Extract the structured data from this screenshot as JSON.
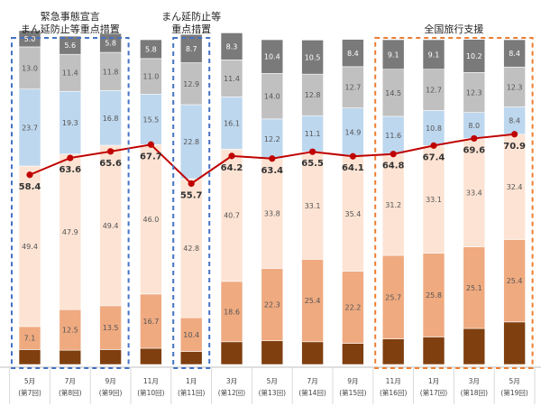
{
  "chart_data": {
    "type": "bar",
    "stacked": true,
    "ylim": [
      0,
      100
    ],
    "categories": [
      {
        "month": "5月",
        "round": "(第7回)"
      },
      {
        "month": "7月",
        "round": "(第8回)"
      },
      {
        "month": "9月",
        "round": "(第9回)"
      },
      {
        "month": "11月",
        "round": "(第10回)"
      },
      {
        "month": "1月",
        "round": "(第11回)"
      },
      {
        "month": "3月",
        "round": "(第12回)"
      },
      {
        "month": "5月",
        "round": "(第13回)"
      },
      {
        "month": "7月",
        "round": "(第14回)"
      },
      {
        "month": "9月",
        "round": "(第15回)"
      },
      {
        "month": "11月",
        "round": "(第16回)"
      },
      {
        "month": "1月",
        "round": "(第17回)"
      },
      {
        "month": "3月",
        "round": "(第18回)"
      },
      {
        "month": "5月",
        "round": "(第19回)"
      }
    ],
    "series": [
      {
        "color": "#7f3f0f",
        "values": [
          4.6,
          4.4,
          4.6,
          5.0,
          4.0,
          7.0,
          7.3,
          7.0,
          6.5,
          7.9,
          8.5,
          11.1,
          13.1
        ]
      },
      {
        "color": "#efaa80",
        "values": [
          7.1,
          12.5,
          13.5,
          16.7,
          10.4,
          18.6,
          22.3,
          25.4,
          22.2,
          25.7,
          25.8,
          25.1,
          25.4
        ]
      },
      {
        "color": "#fce3d3",
        "values": [
          49.4,
          47.9,
          49.4,
          46.0,
          42.8,
          40.7,
          33.8,
          33.1,
          35.4,
          31.2,
          33.1,
          33.4,
          32.4
        ]
      },
      {
        "color": "#bdd7ee",
        "values": [
          23.7,
          19.3,
          16.8,
          15.5,
          22.8,
          16.1,
          12.2,
          11.1,
          14.9,
          11.6,
          10.8,
          8.0,
          8.4
        ]
      },
      {
        "color": "#c0c0c0",
        "values": [
          13.0,
          11.4,
          11.8,
          11.0,
          12.9,
          11.4,
          14.0,
          12.8,
          12.7,
          14.5,
          12.7,
          12.3,
          12.3
        ]
      },
      {
        "color": "#7a7a7a",
        "values": [
          5.0,
          5.6,
          5.8,
          5.8,
          8.7,
          8.3,
          10.4,
          10.5,
          8.4,
          9.1,
          9.1,
          10.2,
          8.4
        ]
      }
    ],
    "label_from_series": [
      1,
      2,
      3,
      4,
      5
    ],
    "line": {
      "color": "#c00000",
      "values": [
        58.4,
        63.6,
        65.6,
        67.7,
        55.7,
        64.2,
        63.4,
        65.5,
        64.1,
        64.8,
        67.4,
        69.6,
        70.9
      ]
    },
    "annotations": [
      {
        "lines": [
          "緊急事態宣言",
          "まん延防止等重点措置"
        ],
        "from": 0,
        "to": 2
      },
      {
        "lines": [
          "まん延防止等",
          "重点措置"
        ],
        "from": 4,
        "to": 4
      },
      {
        "lines": [
          "全国旅行支援"
        ],
        "from": 9,
        "to": 12
      }
    ],
    "annotation_color": "#4472c4",
    "annotation_color_travel": "#ed7d31"
  }
}
